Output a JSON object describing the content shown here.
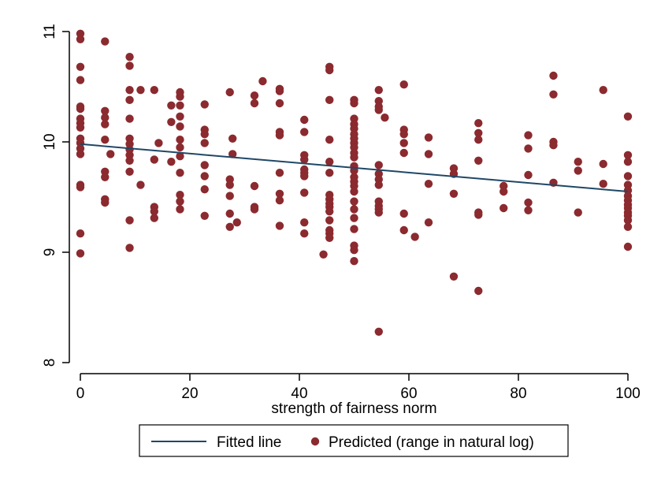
{
  "chart_data": {
    "type": "scatter",
    "xlabel": "strength of fairness norm",
    "ylabel": "",
    "xlim": [
      0,
      100
    ],
    "ylim": [
      8,
      11
    ],
    "x_ticks": [
      0,
      20,
      40,
      60,
      80,
      100
    ],
    "x_tick_labels": [
      "0",
      "20",
      "40",
      "60",
      "80",
      "100"
    ],
    "y_ticks": [
      8,
      9,
      10,
      11
    ],
    "y_tick_labels": [
      "8",
      "9",
      "10",
      "11"
    ],
    "grid": "none",
    "legend_position": "bottom",
    "legend": {
      "line_label": "Fitted line",
      "points_label": "Predicted (range in natural log)"
    },
    "colors": {
      "points": "#8b2a2f",
      "line": "#1f4766",
      "axes": "#000000"
    },
    "fitted_line": {
      "x": [
        0,
        100
      ],
      "y": [
        9.98,
        9.55
      ]
    },
    "series": [
      {
        "name": "Predicted (range in natural log)",
        "points": [
          [
            0,
            10.98
          ],
          [
            0,
            10.93
          ],
          [
            0,
            10.68
          ],
          [
            0,
            10.56
          ],
          [
            0,
            10.32
          ],
          [
            0,
            10.3
          ],
          [
            0,
            10.21
          ],
          [
            0,
            10.17
          ],
          [
            0,
            10.13
          ],
          [
            0,
            10.03
          ],
          [
            0,
            9.99
          ],
          [
            0,
            9.94
          ],
          [
            0,
            9.89
          ],
          [
            0,
            9.61
          ],
          [
            0,
            9.59
          ],
          [
            0,
            9.17
          ],
          [
            0,
            8.99
          ],
          [
            4.5,
            10.91
          ],
          [
            4.5,
            10.28
          ],
          [
            4.5,
            10.22
          ],
          [
            4.5,
            10.16
          ],
          [
            4.5,
            10.02
          ],
          [
            4.5,
            9.73
          ],
          [
            4.5,
            9.68
          ],
          [
            4.5,
            9.48
          ],
          [
            4.5,
            9.45
          ],
          [
            5.5,
            9.89
          ],
          [
            9,
            10.77
          ],
          [
            9,
            10.69
          ],
          [
            9,
            10.47
          ],
          [
            9,
            10.38
          ],
          [
            9,
            10.21
          ],
          [
            9,
            10.03
          ],
          [
            9,
            9.98
          ],
          [
            9,
            9.93
          ],
          [
            9,
            9.88
          ],
          [
            9,
            9.83
          ],
          [
            9,
            9.73
          ],
          [
            9,
            9.29
          ],
          [
            9,
            9.04
          ],
          [
            11,
            10.47
          ],
          [
            11,
            9.61
          ],
          [
            13.5,
            10.47
          ],
          [
            13.5,
            9.84
          ],
          [
            13.5,
            9.41
          ],
          [
            13.5,
            9.37
          ],
          [
            13.5,
            9.31
          ],
          [
            14.3,
            9.99
          ],
          [
            16.6,
            10.33
          ],
          [
            16.6,
            10.18
          ],
          [
            16.6,
            9.82
          ],
          [
            18.2,
            10.45
          ],
          [
            18.2,
            10.41
          ],
          [
            18.2,
            10.33
          ],
          [
            18.2,
            10.23
          ],
          [
            18.2,
            10.14
          ],
          [
            18.2,
            10.02
          ],
          [
            18.2,
            9.95
          ],
          [
            18.2,
            9.87
          ],
          [
            18.2,
            9.72
          ],
          [
            18.2,
            9.52
          ],
          [
            18.2,
            9.46
          ],
          [
            18.2,
            9.39
          ],
          [
            22.7,
            10.34
          ],
          [
            22.7,
            10.11
          ],
          [
            22.7,
            10.07
          ],
          [
            22.7,
            9.99
          ],
          [
            22.7,
            9.79
          ],
          [
            22.7,
            9.69
          ],
          [
            22.7,
            9.57
          ],
          [
            22.7,
            9.33
          ],
          [
            27.3,
            10.45
          ],
          [
            27.3,
            9.66
          ],
          [
            27.3,
            9.61
          ],
          [
            27.3,
            9.51
          ],
          [
            27.3,
            9.35
          ],
          [
            27.3,
            9.23
          ],
          [
            27.8,
            10.03
          ],
          [
            27.8,
            9.89
          ],
          [
            28.6,
            9.27
          ],
          [
            31.8,
            10.42
          ],
          [
            31.8,
            10.35
          ],
          [
            31.8,
            9.6
          ],
          [
            31.8,
            9.41
          ],
          [
            31.8,
            9.39
          ],
          [
            33.3,
            10.55
          ],
          [
            36.4,
            10.48
          ],
          [
            36.4,
            10.46
          ],
          [
            36.4,
            10.35
          ],
          [
            36.4,
            10.09
          ],
          [
            36.4,
            10.06
          ],
          [
            36.4,
            9.72
          ],
          [
            36.4,
            9.53
          ],
          [
            36.4,
            9.47
          ],
          [
            36.4,
            9.24
          ],
          [
            40.9,
            10.2
          ],
          [
            40.9,
            10.09
          ],
          [
            40.9,
            9.88
          ],
          [
            40.9,
            9.84
          ],
          [
            40.9,
            9.75
          ],
          [
            40.9,
            9.72
          ],
          [
            40.9,
            9.69
          ],
          [
            40.9,
            9.54
          ],
          [
            40.9,
            9.27
          ],
          [
            40.9,
            9.17
          ],
          [
            44.4,
            8.98
          ],
          [
            45.5,
            10.68
          ],
          [
            45.5,
            10.65
          ],
          [
            45.5,
            10.38
          ],
          [
            45.5,
            10.02
          ],
          [
            45.5,
            9.82
          ],
          [
            45.5,
            9.72
          ],
          [
            45.5,
            9.52
          ],
          [
            45.5,
            9.48
          ],
          [
            45.5,
            9.44
          ],
          [
            45.5,
            9.41
          ],
          [
            45.5,
            9.37
          ],
          [
            45.5,
            9.29
          ],
          [
            45.5,
            9.2
          ],
          [
            45.5,
            9.17
          ],
          [
            45.5,
            9.13
          ],
          [
            50,
            10.38
          ],
          [
            50,
            10.35
          ],
          [
            50,
            10.21
          ],
          [
            50,
            10.16
          ],
          [
            50,
            10.12
          ],
          [
            50,
            10.07
          ],
          [
            50,
            10.03
          ],
          [
            50,
            9.99
          ],
          [
            50,
            9.95
          ],
          [
            50,
            9.9
          ],
          [
            50,
            9.86
          ],
          [
            50,
            9.78
          ],
          [
            50,
            9.74
          ],
          [
            50,
            9.68
          ],
          [
            50,
            9.64
          ],
          [
            50,
            9.6
          ],
          [
            50,
            9.55
          ],
          [
            50,
            9.46
          ],
          [
            50,
            9.39
          ],
          [
            50,
            9.31
          ],
          [
            50,
            9.21
          ],
          [
            50,
            9.06
          ],
          [
            50,
            9.02
          ],
          [
            50,
            8.92
          ],
          [
            54.5,
            10.47
          ],
          [
            54.5,
            10.37
          ],
          [
            54.5,
            10.32
          ],
          [
            54.5,
            10.29
          ],
          [
            54.5,
            9.79
          ],
          [
            54.5,
            9.71
          ],
          [
            54.5,
            9.66
          ],
          [
            54.5,
            9.61
          ],
          [
            54.5,
            9.46
          ],
          [
            54.5,
            9.42
          ],
          [
            54.5,
            9.39
          ],
          [
            54.5,
            9.36
          ],
          [
            54.5,
            8.28
          ],
          [
            55.6,
            10.22
          ],
          [
            59.1,
            10.52
          ],
          [
            59.1,
            10.11
          ],
          [
            59.1,
            10.07
          ],
          [
            59.1,
            9.99
          ],
          [
            59.1,
            9.9
          ],
          [
            59.1,
            9.35
          ],
          [
            59.1,
            9.2
          ],
          [
            61.1,
            9.14
          ],
          [
            63.6,
            10.04
          ],
          [
            63.6,
            9.89
          ],
          [
            63.6,
            9.62
          ],
          [
            63.6,
            9.27
          ],
          [
            68.2,
            9.76
          ],
          [
            68.2,
            9.71
          ],
          [
            68.2,
            9.53
          ],
          [
            68.2,
            8.78
          ],
          [
            72.7,
            10.17
          ],
          [
            72.7,
            10.08
          ],
          [
            72.7,
            10.02
          ],
          [
            72.7,
            9.83
          ],
          [
            72.7,
            9.36
          ],
          [
            72.7,
            9.34
          ],
          [
            72.7,
            8.65
          ],
          [
            77.3,
            9.6
          ],
          [
            77.3,
            9.55
          ],
          [
            77.3,
            9.4
          ],
          [
            81.8,
            10.06
          ],
          [
            81.8,
            9.94
          ],
          [
            81.8,
            9.7
          ],
          [
            81.8,
            9.45
          ],
          [
            81.8,
            9.38
          ],
          [
            86.4,
            10.6
          ],
          [
            86.4,
            10.43
          ],
          [
            86.4,
            10.0
          ],
          [
            86.4,
            9.97
          ],
          [
            86.4,
            9.63
          ],
          [
            90.9,
            9.82
          ],
          [
            90.9,
            9.74
          ],
          [
            90.9,
            9.36
          ],
          [
            95.5,
            10.47
          ],
          [
            95.5,
            9.8
          ],
          [
            95.5,
            9.62
          ],
          [
            100,
            10.23
          ],
          [
            100,
            9.88
          ],
          [
            100,
            9.82
          ],
          [
            100,
            9.69
          ],
          [
            100,
            9.61
          ],
          [
            100,
            9.56
          ],
          [
            100,
            9.51
          ],
          [
            100,
            9.47
          ],
          [
            100,
            9.43
          ],
          [
            100,
            9.4
          ],
          [
            100,
            9.36
          ],
          [
            100,
            9.33
          ],
          [
            100,
            9.29
          ],
          [
            100,
            9.23
          ],
          [
            100,
            9.05
          ]
        ]
      }
    ]
  }
}
